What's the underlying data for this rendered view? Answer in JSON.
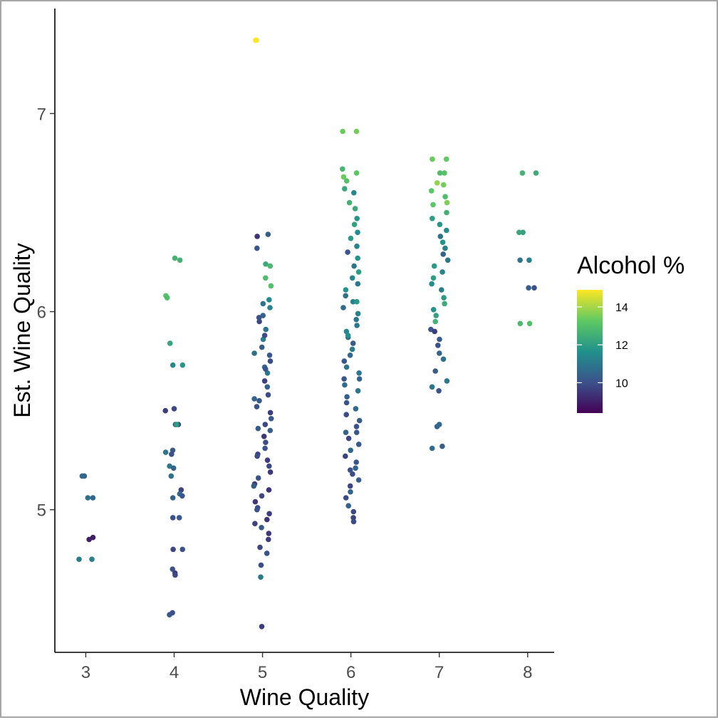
{
  "chart_data": {
    "type": "scatter",
    "title": "",
    "xlabel": "Wine Quality",
    "ylabel": "Est. Wine Quality",
    "x_ticks": [
      3,
      4,
      5,
      6,
      7,
      8
    ],
    "y_ticks": [
      5,
      6,
      7
    ],
    "xlim": [
      2.65,
      8.3
    ],
    "ylim": [
      4.28,
      7.53
    ],
    "grid": false,
    "jitter_width": 0.1,
    "color": {
      "variable": "Alcohol %",
      "scale": "viridis",
      "range": [
        8.4,
        14.9
      ],
      "ticks": [
        10,
        12,
        14
      ],
      "legend_position": "right"
    },
    "groups": [
      {
        "quality": 3,
        "points": [
          [
            5.17,
            10.4
          ],
          [
            5.17,
            10.6
          ],
          [
            5.06,
            10.6
          ],
          [
            5.06,
            10.8
          ],
          [
            4.86,
            9.0
          ],
          [
            4.85,
            9.0
          ],
          [
            4.75,
            11.1
          ],
          [
            4.75,
            11.2
          ]
        ]
      },
      {
        "quality": 4,
        "points": [
          [
            6.26,
            12.6
          ],
          [
            6.27,
            12.6
          ],
          [
            6.08,
            13.1
          ],
          [
            6.07,
            12.9
          ],
          [
            5.84,
            12.2
          ],
          [
            5.73,
            11.8
          ],
          [
            5.73,
            11.5
          ],
          [
            5.5,
            9.6
          ],
          [
            5.51,
            9.8
          ],
          [
            5.43,
            9.8
          ],
          [
            5.43,
            9.9
          ],
          [
            5.43,
            12.0
          ],
          [
            5.29,
            10.9
          ],
          [
            5.3,
            10.2
          ],
          [
            5.28,
            10.0
          ],
          [
            5.22,
            11.0
          ],
          [
            5.21,
            10.4
          ],
          [
            5.17,
            10.8
          ],
          [
            5.1,
            9.7
          ],
          [
            5.08,
            10.6
          ],
          [
            5.06,
            10.4
          ],
          [
            5.07,
            10.1
          ],
          [
            4.96,
            10.0
          ],
          [
            4.96,
            10.2
          ],
          [
            4.8,
            9.8
          ],
          [
            4.8,
            10.0
          ],
          [
            4.7,
            10.0
          ],
          [
            4.68,
            9.6
          ],
          [
            4.67,
            9.8
          ],
          [
            4.47,
            10.2
          ],
          [
            4.48,
            10.0
          ]
        ]
      },
      {
        "quality": 5,
        "points": [
          [
            7.37,
            14.9
          ],
          [
            7.37,
            14.9
          ],
          [
            6.39,
            10.3
          ],
          [
            6.38,
            9.4
          ],
          [
            6.32,
            10.1
          ],
          [
            6.24,
            12.4
          ],
          [
            6.23,
            12.8
          ],
          [
            6.17,
            12.9
          ],
          [
            6.13,
            13.0
          ],
          [
            6.06,
            11.5
          ],
          [
            6.04,
            10.9
          ],
          [
            6.02,
            11.3
          ],
          [
            5.98,
            10.5
          ],
          [
            5.95,
            9.8
          ],
          [
            5.91,
            10.9
          ],
          [
            5.86,
            11.2
          ],
          [
            5.82,
            10.3
          ],
          [
            5.79,
            10.8
          ],
          [
            5.78,
            10.2
          ],
          [
            5.75,
            9.9
          ],
          [
            5.72,
            10.6
          ],
          [
            5.69,
            11.0
          ],
          [
            5.65,
            9.7
          ],
          [
            5.62,
            10.4
          ],
          [
            5.58,
            9.9
          ],
          [
            5.55,
            10.2
          ],
          [
            5.52,
            10.0
          ],
          [
            5.49,
            9.6
          ],
          [
            5.46,
            10.1
          ],
          [
            5.43,
            9.8
          ],
          [
            5.4,
            10.3
          ],
          [
            5.37,
            9.5
          ],
          [
            5.34,
            9.9
          ],
          [
            5.31,
            10.1
          ],
          [
            5.28,
            9.7
          ],
          [
            5.25,
            9.6
          ],
          [
            5.22,
            9.8
          ],
          [
            5.19,
            9.5
          ],
          [
            5.16,
            10.0
          ],
          [
            5.13,
            9.6
          ],
          [
            5.1,
            9.4
          ],
          [
            5.07,
            9.8
          ],
          [
            5.04,
            9.5
          ],
          [
            5.01,
            9.9
          ],
          [
            4.98,
            9.6
          ],
          [
            4.95,
            9.4
          ],
          [
            4.93,
            9.7
          ],
          [
            4.91,
            10.2
          ],
          [
            4.88,
            9.5
          ],
          [
            4.85,
            9.6
          ],
          [
            4.81,
            9.8
          ],
          [
            4.78,
            10.0
          ],
          [
            4.72,
            9.9
          ],
          [
            4.66,
            11.0
          ],
          [
            4.41,
            9.6
          ],
          [
            5.97,
            10.0
          ],
          [
            5.88,
            9.9
          ],
          [
            5.71,
            10.1
          ],
          [
            5.56,
            10.5
          ],
          [
            5.41,
            10.2
          ],
          [
            5.27,
            9.9
          ],
          [
            5.12,
            10.3
          ],
          [
            5.0,
            10.0
          ]
        ]
      },
      {
        "quality": 6,
        "points": [
          [
            6.91,
            13.5
          ],
          [
            6.91,
            13.4
          ],
          [
            6.72,
            12.7
          ],
          [
            6.7,
            13.2
          ],
          [
            6.68,
            13.4
          ],
          [
            6.66,
            13.0
          ],
          [
            6.62,
            12.3
          ],
          [
            6.6,
            11.4
          ],
          [
            6.55,
            12.6
          ],
          [
            6.52,
            12.4
          ],
          [
            6.47,
            11.8
          ],
          [
            6.44,
            12.1
          ],
          [
            6.4,
            11.5
          ],
          [
            6.37,
            11.9
          ],
          [
            6.33,
            11.3
          ],
          [
            6.3,
            10.1
          ],
          [
            6.27,
            11.7
          ],
          [
            6.23,
            11.0
          ],
          [
            6.2,
            12.0
          ],
          [
            6.17,
            11.4
          ],
          [
            6.14,
            11.0
          ],
          [
            6.11,
            11.7
          ],
          [
            6.08,
            10.8
          ],
          [
            6.05,
            11.2
          ],
          [
            6.02,
            10.6
          ],
          [
            5.99,
            11.3
          ],
          [
            5.96,
            10.9
          ],
          [
            5.93,
            11.0
          ],
          [
            5.9,
            11.4
          ],
          [
            5.87,
            10.7
          ],
          [
            5.84,
            10.3
          ],
          [
            5.81,
            11.1
          ],
          [
            5.78,
            10.6
          ],
          [
            5.75,
            10.2
          ],
          [
            5.72,
            10.9
          ],
          [
            5.69,
            11.0
          ],
          [
            5.66,
            10.5
          ],
          [
            5.63,
            10.7
          ],
          [
            5.6,
            10.9
          ],
          [
            5.57,
            10.4
          ],
          [
            5.54,
            10.1
          ],
          [
            5.51,
            10.6
          ],
          [
            5.48,
            9.9
          ],
          [
            5.45,
            10.3
          ],
          [
            5.42,
            10.0
          ],
          [
            5.39,
            10.5
          ],
          [
            5.36,
            9.8
          ],
          [
            5.33,
            10.2
          ],
          [
            5.3,
            10.6
          ],
          [
            5.27,
            9.7
          ],
          [
            5.24,
            10.1
          ],
          [
            5.21,
            10.4
          ],
          [
            5.18,
            9.9
          ],
          [
            5.15,
            10.3
          ],
          [
            5.12,
            9.8
          ],
          [
            5.09,
            10.5
          ],
          [
            5.06,
            9.9
          ],
          [
            5.02,
            10.4
          ],
          [
            4.99,
            9.8
          ],
          [
            4.96,
            9.7
          ],
          [
            4.94,
            9.9
          ],
          [
            6.05,
            11.9
          ],
          [
            5.88,
            11.6
          ],
          [
            5.66,
            10.1
          ],
          [
            5.39,
            10.2
          ],
          [
            5.2,
            10.0
          ]
        ]
      },
      {
        "quality": 7,
        "points": [
          [
            6.77,
            13.4
          ],
          [
            6.77,
            13.3
          ],
          [
            6.7,
            12.9
          ],
          [
            6.7,
            13.1
          ],
          [
            6.65,
            13.8
          ],
          [
            6.64,
            13.5
          ],
          [
            6.61,
            13.2
          ],
          [
            6.58,
            12.9
          ],
          [
            6.55,
            13.6
          ],
          [
            6.54,
            13.2
          ],
          [
            6.5,
            12.5
          ],
          [
            6.47,
            12.0
          ],
          [
            6.44,
            11.8
          ],
          [
            6.41,
            11.5
          ],
          [
            6.38,
            10.9
          ],
          [
            6.35,
            11.7
          ],
          [
            6.32,
            11.2
          ],
          [
            6.29,
            10.5
          ],
          [
            6.26,
            11.0
          ],
          [
            6.23,
            11.9
          ],
          [
            6.2,
            11.4
          ],
          [
            6.17,
            12.0
          ],
          [
            6.14,
            11.6
          ],
          [
            6.11,
            11.2
          ],
          [
            6.07,
            11.9
          ],
          [
            6.04,
            12.4
          ],
          [
            6.01,
            11.7
          ],
          [
            5.98,
            12.1
          ],
          [
            5.95,
            12.6
          ],
          [
            5.91,
            10.1
          ],
          [
            5.9,
            9.6
          ],
          [
            5.86,
            10.2
          ],
          [
            5.83,
            10.0
          ],
          [
            5.79,
            10.5
          ],
          [
            5.76,
            10.8
          ],
          [
            5.7,
            10.3
          ],
          [
            5.65,
            11.0
          ],
          [
            5.62,
            10.9
          ],
          [
            5.6,
            10.1
          ],
          [
            5.42,
            10.4
          ],
          [
            5.43,
            10.6
          ],
          [
            5.32,
            10.4
          ],
          [
            5.31,
            10.7
          ]
        ]
      },
      {
        "quality": 8,
        "points": [
          [
            6.7,
            12.4
          ],
          [
            6.7,
            12.6
          ],
          [
            6.4,
            12.1
          ],
          [
            6.4,
            12.3
          ],
          [
            6.26,
            10.9
          ],
          [
            6.26,
            11.2
          ],
          [
            6.12,
            10.0
          ],
          [
            6.12,
            10.3
          ],
          [
            5.94,
            12.8
          ],
          [
            5.94,
            13.0
          ]
        ]
      }
    ]
  }
}
